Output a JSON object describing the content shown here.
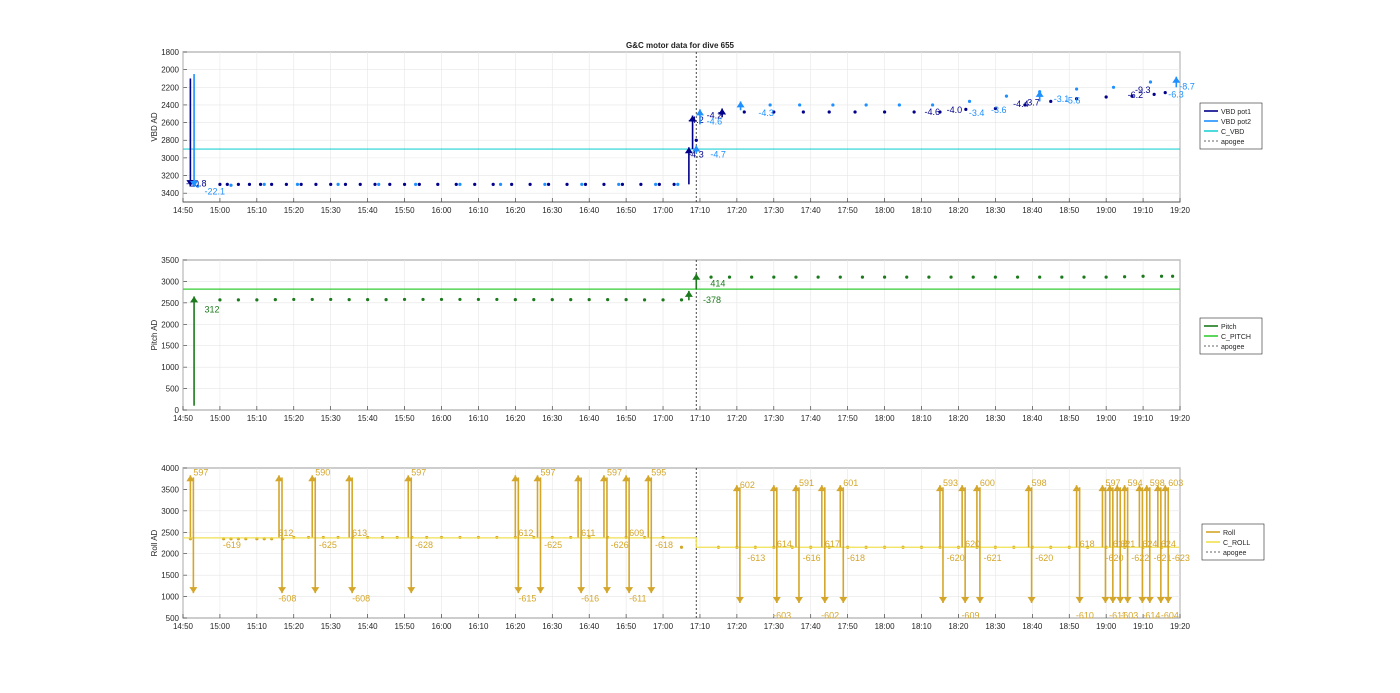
{
  "figure_title": "G&C motor data for dive 655",
  "x_ticks": [
    "14:50",
    "15:00",
    "15:10",
    "15:20",
    "15:30",
    "15:40",
    "15:50",
    "16:00",
    "16:10",
    "16:20",
    "16:30",
    "16:40",
    "16:50",
    "17:00",
    "17:10",
    "17:20",
    "17:30",
    "17:40",
    "17:50",
    "18:00",
    "18:10",
    "18:20",
    "18:30",
    "18:40",
    "18:50",
    "19:00",
    "19:10",
    "19:20"
  ],
  "colors": {
    "vbd_pot1": "#00008b",
    "vbd_pot2": "#1e90ff",
    "c_vbd": "#20d0d0",
    "pitch": "#1b7a1b",
    "c_pitch": "#33cc33",
    "roll": "#d4a62a",
    "c_roll": "#f0e050",
    "apogee": "#333333",
    "grid": "#e6e6e6"
  },
  "chart_data": [
    {
      "type": "scatter",
      "ylabel": "VBD AD",
      "y_reversed": true,
      "ylim": [
        1800,
        3500
      ],
      "yticks": [
        1800,
        2000,
        2200,
        2400,
        2600,
        2800,
        3000,
        3200,
        3400
      ],
      "xlim": [
        "14:50",
        "19:20"
      ],
      "apogee": "17:09",
      "legend": [
        "VBD pot1",
        "VBD pot2",
        "C_VBD",
        "apogee"
      ],
      "legend_position": "right",
      "series": [
        {
          "name": "VBD pot1",
          "x": [
            "14:53",
            "15:00",
            "15:02",
            "15:05",
            "15:08",
            "15:11",
            "15:14",
            "15:18",
            "15:22",
            "15:26",
            "15:30",
            "15:34",
            "15:38",
            "15:42",
            "15:46",
            "15:50",
            "15:54",
            "15:59",
            "16:04",
            "16:09",
            "16:14",
            "16:19",
            "16:24",
            "16:29",
            "16:34",
            "16:39",
            "16:44",
            "16:49",
            "16:54",
            "16:59",
            "17:03",
            "17:09",
            "17:16",
            "17:22",
            "17:30",
            "17:38",
            "17:45",
            "17:52",
            "18:00",
            "18:08",
            "18:15",
            "18:22",
            "18:30",
            "18:38",
            "18:45",
            "18:52",
            "19:00",
            "19:07",
            "19:13",
            "19:16"
          ],
          "y": [
            3300,
            3300,
            3300,
            3300,
            3300,
            3300,
            3300,
            3300,
            3300,
            3300,
            3300,
            3300,
            3300,
            3300,
            3300,
            3300,
            3300,
            3300,
            3300,
            3300,
            3300,
            3300,
            3300,
            3300,
            3300,
            3300,
            3300,
            3300,
            3300,
            3300,
            3300,
            2800,
            2480,
            2480,
            2480,
            2480,
            2480,
            2480,
            2480,
            2480,
            2480,
            2450,
            2440,
            2400,
            2360,
            2330,
            2310,
            2300,
            2280,
            2260
          ]
        },
        {
          "name": "VBD pot2",
          "x": [
            "14:54",
            "15:03",
            "15:12",
            "15:21",
            "15:32",
            "15:43",
            "15:53",
            "16:05",
            "16:16",
            "16:28",
            "16:38",
            "16:48",
            "16:58",
            "17:04",
            "17:10",
            "17:21",
            "17:29",
            "17:37",
            "17:46",
            "17:55",
            "18:04",
            "18:13",
            "18:23",
            "18:33",
            "18:42",
            "18:52",
            "19:02",
            "19:12"
          ],
          "y": [
            3320,
            3310,
            3300,
            3300,
            3300,
            3300,
            3300,
            3300,
            3300,
            3300,
            3300,
            3300,
            3300,
            3300,
            2500,
            2400,
            2400,
            2400,
            2400,
            2400,
            2400,
            2400,
            2360,
            2300,
            2250,
            2220,
            2200,
            2140
          ]
        },
        {
          "name": "C_VBD",
          "x": [
            "14:50",
            "19:20"
          ],
          "y": [
            2900,
            2900
          ]
        }
      ],
      "annotations": [
        {
          "text": "-20.8",
          "x": "14:50",
          "y": 3290,
          "series": "VBD pot1"
        },
        {
          "text": "-22.1",
          "x": "14:55",
          "y": 3380,
          "series": "VBD pot2"
        },
        {
          "text": "-4.3",
          "x": "17:06",
          "y": 2960,
          "series": "VBD pot1"
        },
        {
          "text": "-4.2",
          "x": "17:06",
          "y": 2570,
          "series": "VBD pot1"
        },
        {
          "text": "-4.2",
          "x": "17:11",
          "y": 2520,
          "series": "VBD pot1"
        },
        {
          "text": "-4.6",
          "x": "17:11",
          "y": 2590,
          "series": "VBD pot2"
        },
        {
          "text": "-4.7",
          "x": "17:12",
          "y": 2960,
          "series": "VBD pot2"
        },
        {
          "text": "-4.3",
          "x": "17:25",
          "y": 2490,
          "series": "VBD pot2"
        },
        {
          "text": "-4.6",
          "x": "18:10",
          "y": 2480,
          "series": "VBD pot1"
        },
        {
          "text": "-4.0",
          "x": "18:16",
          "y": 2460,
          "series": "VBD pot1"
        },
        {
          "text": "-3.4",
          "x": "18:22",
          "y": 2490,
          "series": "VBD pot2"
        },
        {
          "text": "-3.6",
          "x": "18:28",
          "y": 2460,
          "series": "VBD pot2"
        },
        {
          "text": "-4.4",
          "x": "18:34",
          "y": 2390,
          "series": "VBD pot1"
        },
        {
          "text": "-3.7",
          "x": "18:37",
          "y": 2370,
          "series": "VBD pot1"
        },
        {
          "text": "-3.1",
          "x": "18:45",
          "y": 2330,
          "series": "VBD pot2"
        },
        {
          "text": "-5.6",
          "x": "18:48",
          "y": 2350,
          "series": "VBD pot2"
        },
        {
          "text": "-6.2",
          "x": "19:05",
          "y": 2290,
          "series": "VBD pot1"
        },
        {
          "text": "-9.3",
          "x": "19:07",
          "y": 2230,
          "series": "VBD pot1"
        },
        {
          "text": "-6.3",
          "x": "19:16",
          "y": 2280,
          "series": "VBD pot2"
        },
        {
          "text": "-8.7",
          "x": "19:19",
          "y": 2190,
          "series": "VBD pot2"
        }
      ]
    },
    {
      "type": "scatter",
      "ylabel": "Pitch AD",
      "ylim": [
        0,
        3500
      ],
      "yticks": [
        0,
        500,
        1000,
        1500,
        2000,
        2500,
        3000,
        3500
      ],
      "xlim": [
        "14:50",
        "19:20"
      ],
      "apogee": "17:09",
      "legend": [
        "Pitch",
        "C_PITCH",
        "apogee"
      ],
      "legend_position": "right",
      "series": [
        {
          "name": "Pitch",
          "x": [
            "15:00",
            "15:05",
            "15:10",
            "15:15",
            "15:20",
            "15:25",
            "15:30",
            "15:35",
            "15:40",
            "15:45",
            "15:50",
            "15:55",
            "16:00",
            "16:05",
            "16:10",
            "16:15",
            "16:20",
            "16:25",
            "16:30",
            "16:35",
            "16:40",
            "16:45",
            "16:50",
            "16:55",
            "17:00",
            "17:05",
            "17:13",
            "17:18",
            "17:24",
            "17:30",
            "17:36",
            "17:42",
            "17:48",
            "17:54",
            "18:00",
            "18:06",
            "18:12",
            "18:18",
            "18:24",
            "18:30",
            "18:36",
            "18:42",
            "18:48",
            "18:54",
            "19:00",
            "19:05",
            "19:10",
            "19:15",
            "19:18"
          ],
          "y": [
            2570,
            2570,
            2570,
            2575,
            2580,
            2580,
            2580,
            2575,
            2575,
            2575,
            2580,
            2580,
            2580,
            2580,
            2580,
            2580,
            2575,
            2575,
            2575,
            2575,
            2575,
            2575,
            2575,
            2570,
            2570,
            2570,
            3100,
            3100,
            3100,
            3100,
            3100,
            3100,
            3100,
            3100,
            3100,
            3100,
            3100,
            3100,
            3100,
            3100,
            3100,
            3100,
            3100,
            3100,
            3100,
            3110,
            3120,
            3120,
            3120
          ]
        },
        {
          "name": "C_PITCH",
          "x": [
            "14:50",
            "19:20"
          ],
          "y": [
            2820,
            2820
          ]
        }
      ],
      "annotations": [
        {
          "text": "312",
          "x": "14:55",
          "y": 2350,
          "series": "Pitch"
        },
        {
          "text": "414",
          "x": "17:12",
          "y": 2950,
          "series": "Pitch"
        },
        {
          "text": "-378",
          "x": "17:10",
          "y": 2570,
          "series": "Pitch"
        }
      ]
    },
    {
      "type": "scatter",
      "ylabel": "Roll AD",
      "ylim": [
        500,
        4000
      ],
      "yticks": [
        500,
        1000,
        1500,
        2000,
        2500,
        3000,
        3500,
        4000
      ],
      "xlim": [
        "14:50",
        "19:20"
      ],
      "apogee": "17:09",
      "legend": [
        "Roll",
        "C_ROLL",
        "apogee"
      ],
      "legend_position": "right",
      "series": [
        {
          "name": "Roll",
          "x": [
            "14:52",
            "15:01",
            "15:03",
            "15:05",
            "15:07",
            "15:10",
            "15:12",
            "15:14",
            "15:17",
            "15:20",
            "15:24",
            "15:28",
            "15:32",
            "15:36",
            "15:40",
            "15:44",
            "15:48",
            "15:52",
            "15:56",
            "16:00",
            "16:05",
            "16:10",
            "16:15",
            "16:20",
            "16:25",
            "16:30",
            "16:35",
            "16:40",
            "16:45",
            "16:50",
            "16:55",
            "17:00",
            "17:05",
            "17:15",
            "17:20",
            "17:25",
            "17:30",
            "17:35",
            "17:40",
            "17:45",
            "17:50",
            "17:55",
            "18:00",
            "18:05",
            "18:10",
            "18:15",
            "18:20",
            "18:25",
            "18:30",
            "18:35",
            "18:40",
            "18:45",
            "18:50",
            "18:55",
            "19:00",
            "19:05",
            "19:10",
            "19:15"
          ],
          "y": [
            2350,
            2350,
            2350,
            2350,
            2350,
            2350,
            2350,
            2350,
            2350,
            2380,
            2380,
            2380,
            2380,
            2380,
            2380,
            2380,
            2380,
            2380,
            2380,
            2380,
            2380,
            2380,
            2380,
            2380,
            2380,
            2380,
            2380,
            2380,
            2380,
            2380,
            2380,
            2380,
            2150,
            2150,
            2150,
            2150,
            2150,
            2150,
            2150,
            2150,
            2150,
            2150,
            2150,
            2150,
            2150,
            2150,
            2150,
            2150,
            2150,
            2150,
            2150,
            2150,
            2150,
            2150,
            2150,
            2150,
            2150,
            2150
          ]
        },
        {
          "name": "C_ROLL",
          "x": [
            "14:50",
            "17:09",
            "17:09",
            "19:20"
          ],
          "y": [
            2370,
            2370,
            2150,
            2150
          ]
        }
      ],
      "annotations": [
        {
          "text": "597",
          "x": "14:52",
          "y": 3900
        },
        {
          "text": "-619",
          "x": "15:00",
          "y": 2200
        },
        {
          "text": "612",
          "x": "15:15",
          "y": 2480
        },
        {
          "text": "-608",
          "x": "15:15",
          "y": 950
        },
        {
          "text": "590",
          "x": "15:25",
          "y": 3900
        },
        {
          "text": "-625",
          "x": "15:26",
          "y": 2200
        },
        {
          "text": "613",
          "x": "15:35",
          "y": 2480
        },
        {
          "text": "-608",
          "x": "15:35",
          "y": 950
        },
        {
          "text": "597",
          "x": "15:51",
          "y": 3900
        },
        {
          "text": "-628",
          "x": "15:52",
          "y": 2200
        },
        {
          "text": "612",
          "x": "16:20",
          "y": 2480
        },
        {
          "text": "-615",
          "x": "16:20",
          "y": 950
        },
        {
          "text": "597",
          "x": "16:26",
          "y": 3900
        },
        {
          "text": "-625",
          "x": "16:27",
          "y": 2200
        },
        {
          "text": "611",
          "x": "16:37",
          "y": 2480
        },
        {
          "text": "-616",
          "x": "16:37",
          "y": 950
        },
        {
          "text": "597",
          "x": "16:44",
          "y": 3900
        },
        {
          "text": "-626",
          "x": "16:45",
          "y": 2200
        },
        {
          "text": "609",
          "x": "16:50",
          "y": 2480
        },
        {
          "text": "-611",
          "x": "16:50",
          "y": 950
        },
        {
          "text": "595",
          "x": "16:56",
          "y": 3900
        },
        {
          "text": "-618",
          "x": "16:57",
          "y": 2200
        },
        {
          "text": "602",
          "x": "17:20",
          "y": 3600
        },
        {
          "text": "-613",
          "x": "17:22",
          "y": 1900
        },
        {
          "text": "614",
          "x": "17:30",
          "y": 2230
        },
        {
          "text": "-603",
          "x": "17:29",
          "y": 560
        },
        {
          "text": "591",
          "x": "17:36",
          "y": 3650
        },
        {
          "text": "-616",
          "x": "17:37",
          "y": 1900
        },
        {
          "text": "617",
          "x": "17:43",
          "y": 2230
        },
        {
          "text": "-602",
          "x": "17:42",
          "y": 560
        },
        {
          "text": "601",
          "x": "17:48",
          "y": 3650
        },
        {
          "text": "-618",
          "x": "17:49",
          "y": 1900
        },
        {
          "text": "593",
          "x": "18:15",
          "y": 3650
        },
        {
          "text": "-620",
          "x": "18:16",
          "y": 1900
        },
        {
          "text": "620",
          "x": "18:21",
          "y": 2230
        },
        {
          "text": "-609",
          "x": "18:20",
          "y": 560
        },
        {
          "text": "600",
          "x": "18:25",
          "y": 3650
        },
        {
          "text": "-621",
          "x": "18:26",
          "y": 1900
        },
        {
          "text": "598",
          "x": "18:39",
          "y": 3650
        },
        {
          "text": "-620",
          "x": "18:40",
          "y": 1900
        },
        {
          "text": "618",
          "x": "18:52",
          "y": 2230
        },
        {
          "text": "-610",
          "x": "18:51",
          "y": 560
        },
        {
          "text": "597",
          "x": "18:59",
          "y": 3650
        },
        {
          "text": "-620",
          "x": "18:59",
          "y": 1900
        },
        {
          "text": "618",
          "x": "19:01",
          "y": 2230
        },
        {
          "text": "-611",
          "x": "19:00",
          "y": 560
        },
        {
          "text": "621",
          "x": "19:03",
          "y": 2230
        },
        {
          "text": "-603",
          "x": "19:03",
          "y": 560
        },
        {
          "text": "594",
          "x": "19:05",
          "y": 3650
        },
        {
          "text": "-622",
          "x": "19:06",
          "y": 1900
        },
        {
          "text": "624",
          "x": "19:09",
          "y": 2230
        },
        {
          "text": "-614",
          "x": "19:09",
          "y": 560
        },
        {
          "text": "598",
          "x": "19:11",
          "y": 3650
        },
        {
          "text": "-621",
          "x": "19:12",
          "y": 1900
        },
        {
          "text": "624",
          "x": "19:14",
          "y": 2230
        },
        {
          "text": "-604",
          "x": "19:14",
          "y": 560
        },
        {
          "text": "603",
          "x": "19:16",
          "y": 3650
        },
        {
          "text": "-623",
          "x": "19:17",
          "y": 1900
        }
      ]
    }
  ]
}
